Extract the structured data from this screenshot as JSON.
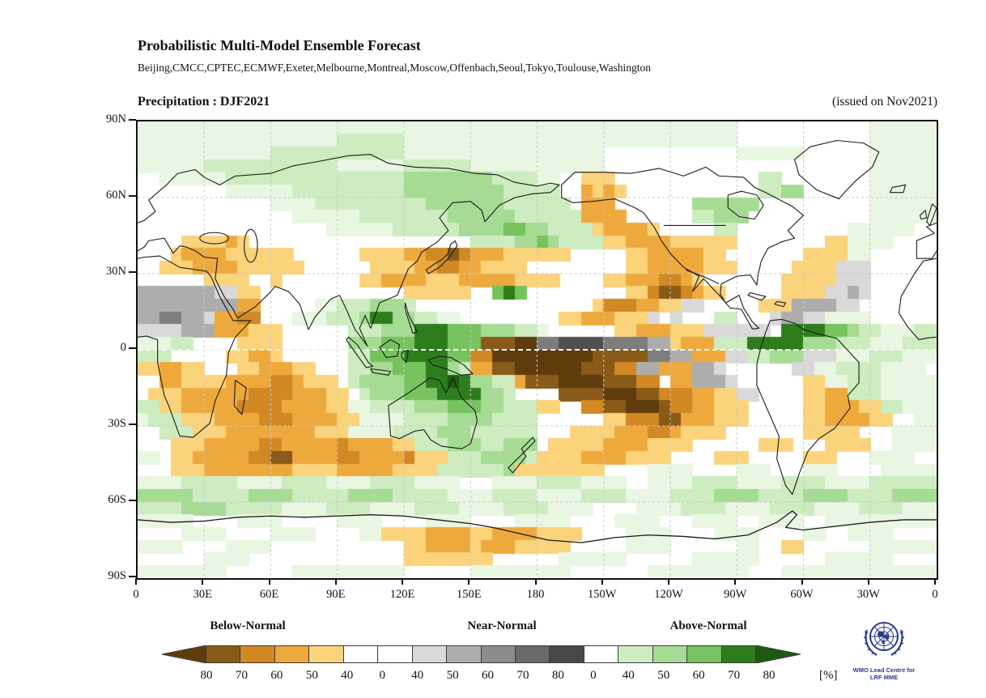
{
  "header": {
    "title": "Probabilistic Multi-Model Ensemble Forecast",
    "models": "Beijing,CMCC,CPTEC,ECMWF,Exeter,Melbourne,Montreal,Moscow,Offenbach,Seoul,Tokyo,Toulouse,Washington"
  },
  "map": {
    "variable_title": "Precipitation : DJF2021",
    "issued": "(issued on Nov2021)",
    "lat_ticks": [
      "90N",
      "60N",
      "30N",
      "0",
      "30S",
      "60S",
      "90S"
    ],
    "lon_ticks": [
      "0",
      "30E",
      "60E",
      "90E",
      "120E",
      "150E",
      "180",
      "150W",
      "120W",
      "90W",
      "60W",
      "30W",
      "0"
    ],
    "grid": {
      "cols": 72,
      "rows": 36,
      "palette": {
        ".": "#ffffff",
        "v": "#e9f6e1",
        "w": "#cdecc0",
        "x": "#a5db92",
        "y": "#76c35e",
        "z": "#2e7d1d",
        "Z": "#1d5c10",
        "a": "#fbd37b",
        "b": "#eea93d",
        "c": "#d28823",
        "d": "#8a5a19",
        "e": "#5f3c0c",
        "p": "#d9d9d9",
        "q": "#adadad",
        "r": "#7d7d7d",
        "s": "#4f4f4f"
      },
      "rows_data": [
        "vvvvvvvvvvvvvvvvvvvvvvvvvvvvvvvvvvvvvvvvvvvvvvvvvvvvvv............vvvvvv",
        "vvvvvvvvvvvvvvvvvvwwwwwwvvvvvvvvvvvvvvvvvvvvvvvvvvvvvv............vvvvvv",
        "vvvvvvvvvvvvwwwwwwwwwwwwvvvvvvvvvvvvvvvvvv............vvvvvv......vvvvvv",
        "vvvvvvwwwwwwwwwwwwvvvvvvwwwwwwvvvvvvvvvvvv........................vvvvvv",
        "..vvvvvvwwwwwwwwwwwwwwwwxxxxxxxxwwwwvv..aaa.............ww........vvvvvv",
        "........vvvvvvwwwwwwwwwwxxxxxxxxxwwwww..baba............wwxx......vvvvvv",
        "............vvvvwwwwwwwwwwxxxxxxxwwwwww.bbb.......xxxxxx..........vvvvvv",
        "..............vvvvvvwwwwwwwwxxxxxxwwwwwwbbbb......wwxxx...........vvvvvv",
        ".................vvvvvvwwwwwwxxxxyyxxwwwwabbbba.....ww..........vvvvvv..",
        "....aaaaba....................wwwwxxyxwwwwaabbbbaaaaaa........aavvvv....b.",
        "...abbbbaaaaaa......aaaabbccdcbbbaaaaaa.....aabbbbbaa.......aaaavv......",
        "..aaabbbbaaaaaa......aaaabbccbbaaaa.........aabbbbbaaa.....aaaappp.....",
        "......aaaa..a.......aabbbbaaabbbbbaaaa....aabbbccba.......aaaaappp....",
        "qqqqqqqppaa.............aaaaaa..yzy.........aacddcbaa.....aaaappqp....",
        "qqqqqqqqqbb.....vvwwwxxxw................acccbbaapp.....aaaqqqqpp...",
        "qqrrqqpbbcc...vvvwwwxzzxxwwvv.........aabbbaaap.p...ww...pqqppvvvv",
        "ppppqqqbbbaaa......wwwxxxzzzyyyxxxwwv......aabbbaaapppppp zzzzyyxwwvvvwww",
        "vvvww....aaaa......xxxyyyzzzyyydddeerrssssrrrrqqabbbwwwzzzzzxxxwwwvvvwww",
        "www.....aabba......wwyyyzzzzyycceeeeeeeeedddddrrqqbbbppwwxxxpppvvvwwwvvv",
        "aabbaa...aabbbaa...wwxxyyyzzxwbbddeeeeeedddccqqbbbqqp......ppvvwwwwvvvv",
        "..bbaaaabbbbccbaaa.wxxxxyyzzZzxxwwbdddeeeedddcc.bbqqqp......aavvwwwvvvvv",
        ".aaabbbbbbccccbbbaa.wxxxyyyzzzzxxw....ddddeeeddcccbbaapp....aabbwwwvvvvv",
        "wwaabbbbbccccbbbbaavvwwwwxxxyyyxxwwwaa..ccddeeedccbbaaa.....aabbbaawwvvv",
        "vwwwaaabbbbcccbbbbaavvvvwwwwxxxxwwww......aacccddbbbaaa.....aabbbbaa..vv",
        "..wwwaaabbbbbbbbaaavvvvwwwwxxxwwwwww...aaaabbbccbaaaa.......aaaaa...vvvv",
        "...aaabbbbbccbbbbbcbbbbaawwwxxxwwxxx.aaaaabbbbaaaa......aaa...aaaa..vvvv",
        "vv.aabbbbbccddbbbbccbbbbcaaawwwxxxxwaaaabbbbaaaa....aaa.....aaa...vvvv..",
        "...aaabbbbbbbbaaaabbbbbaaaawwwwwwxaaaaaaaa....vvvv....vvv...vvv....vvvvv",
        "vvvvwwwwwvvvvwwwwvvvvwwwwvvvv...vvvvwwwwvvvv..vvvvwwwwvvvvwwwwvvvvwwwwww",
        "xxxxxwwwwwxxxxwwwwwxxxxwwwwwvvvvwwwwvvvvwwwwvvvvwwwwxxxxwwwwxxxxwwwwxxxx",
        "wwwwxxxxwwwwwvvvvwwwwvvvvwwwwvvvvwwwwvvvv....vvvvwwwwvvvvwwwwvvvvwwwwvvv",
        "vvvvv....vvvv.....vvvv....vvvv....vvvvv....vvvv...vvvv..vvvv..vvvvvvvvvv",
        "....vvvv....vvvv....vvaaaabbbbaabbbbaaaa....vvvv....vvvv....vv..vvvv....",
        "vvvv....vvvv............aabbbbabbbaaaaa.....vvvv......vv..aa......vvvvvv",
        "......vvvv..............aaaaaaaa......vvvvvv......vvvvvv......vvvvvv....",
        "vvvvvvvv......vvvvvvvvvv......vvvvvvvvv.......vvvvvvvvv...vvvvvvvvvvvvvv"
      ]
    }
  },
  "legend": {
    "sections": [
      {
        "label": "Below-Normal"
      },
      {
        "label": "Near-Normal"
      },
      {
        "label": "Above-Normal"
      }
    ],
    "arrow_left_color": "#5f3c0c",
    "arrow_right_color": "#1d5c10",
    "box_colors": [
      "#8a5a19",
      "#d28823",
      "#eea93d",
      "#fbd37b",
      "#ffffff",
      "#ffffff",
      "#d9d9d9",
      "#adadad",
      "#8c8c8c",
      "#6a6a6a",
      "#484848",
      "#ffffff",
      "#cdecc0",
      "#a5db92",
      "#77c35f",
      "#2e7d1d"
    ],
    "tick_labels": [
      "80",
      "70",
      "60",
      "50",
      "40",
      "0",
      "40",
      "50",
      "60",
      "70",
      "80",
      "0",
      "40",
      "50",
      "60",
      "70",
      "80"
    ],
    "unit": "[%]"
  },
  "logo": {
    "line1": "WMO Lead Centre for",
    "line2": "LRF MME",
    "color": "#2b3990"
  }
}
